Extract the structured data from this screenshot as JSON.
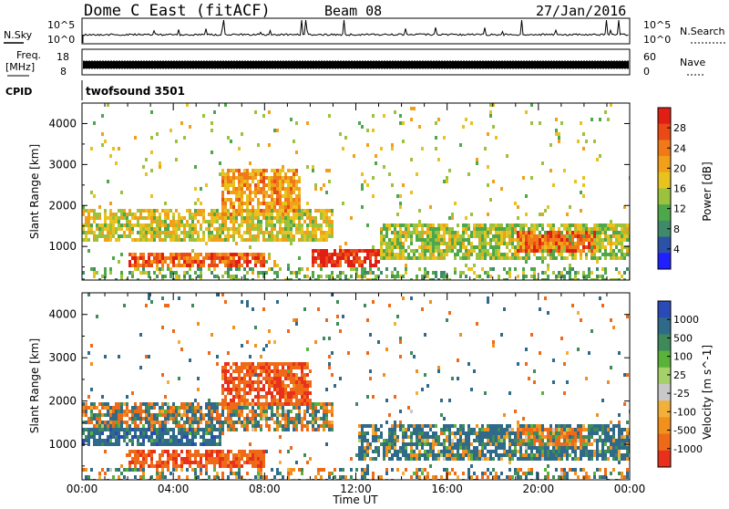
{
  "header": {
    "station": "Dome C East (fitACF)",
    "beam": "Beam 08",
    "date": "27/Jan/2016"
  },
  "status_panels": {
    "nsky_label": "N.Sky",
    "nsky_scale_top": "10^5",
    "nsky_scale_bottom": "10^0",
    "nsearch_label": "N.Search",
    "nsearch_scale_top": "10^5",
    "nsearch_scale_bottom": "10^0",
    "freq_label_line1": "Freq.",
    "freq_label_line2": "[MHz]",
    "freq_top": "18",
    "freq_bottom": "8",
    "nave_label": "Nave",
    "nave_top": "60",
    "nave_bottom": "0",
    "cpid_label": "CPID",
    "cpid_value": "twofsound 3501"
  },
  "axes": {
    "ylabel": "Slant Range [km]",
    "xlabel": "Time UT",
    "x_ticks": [
      "00:00",
      "04:00",
      "08:00",
      "12:00",
      "16:00",
      "20:00",
      "00:00"
    ],
    "y_ticks": [
      "1000",
      "2000",
      "3000",
      "4000"
    ]
  },
  "power_colorbar": {
    "label": "Power [dB]",
    "ticks": [
      "4",
      "8",
      "12",
      "16",
      "20",
      "24",
      "28"
    ],
    "colors": [
      "#1f1fff",
      "#2b52a8",
      "#3f8a6a",
      "#4ca84a",
      "#9bc23c",
      "#e8c21e",
      "#f2a01a",
      "#f07a18",
      "#ea4a16",
      "#e01e14"
    ]
  },
  "velocity_colorbar": {
    "label": "Velocity [m s^-1]",
    "ticks": [
      "1000",
      "500",
      "100",
      "25",
      "-25",
      "-100",
      "-500",
      "-1000"
    ],
    "colors": [
      "#2a4ab8",
      "#2f6a8a",
      "#3e8a5a",
      "#5ab23a",
      "#a6d06a",
      "#c8c8c8",
      "#f2b03a",
      "#f2901e",
      "#ee6a18",
      "#e8301a"
    ]
  },
  "chart_data": [
    {
      "type": "heatmap",
      "title": "Power",
      "xlabel": "Time UT",
      "ylabel": "Slant Range [km]",
      "xlim": [
        "00:00",
        "24:00"
      ],
      "ylim": [
        180,
        4500
      ],
      "zlabel": "Power [dB]",
      "zlim": [
        0,
        30
      ],
      "features": [
        {
          "time_range": [
            "00:00",
            "11:00"
          ],
          "range_km": [
            1200,
            2000
          ],
          "power_db": 16
        },
        {
          "time_range": [
            "06:00",
            "09:30"
          ],
          "range_km": [
            1800,
            2900
          ],
          "power_db": 20
        },
        {
          "time_range": [
            "02:00",
            "08:00"
          ],
          "range_km": [
            500,
            900
          ],
          "power_db": 24
        },
        {
          "time_range": [
            "10:00",
            "13:00"
          ],
          "range_km": [
            500,
            1000
          ],
          "power_db": 28
        },
        {
          "time_range": [
            "13:00",
            "24:00"
          ],
          "range_km": [
            700,
            1600
          ],
          "power_db": 14
        },
        {
          "time_range": [
            "19:00",
            "22:30"
          ],
          "range_km": [
            900,
            1400
          ],
          "power_db": 24
        }
      ]
    },
    {
      "type": "heatmap",
      "title": "Velocity",
      "xlabel": "Time UT",
      "ylabel": "Slant Range [km]",
      "xlim": [
        "00:00",
        "24:00"
      ],
      "ylim": [
        180,
        4500
      ],
      "zlabel": "Velocity [m s^-1]",
      "zlim": [
        -1000,
        1000
      ],
      "features": [
        {
          "time_range": [
            "00:00",
            "11:00"
          ],
          "range_km": [
            1300,
            2000
          ],
          "velocity_ms": 0
        },
        {
          "time_range": [
            "00:00",
            "06:00"
          ],
          "range_km": [
            1000,
            1400
          ],
          "velocity_ms": 150
        },
        {
          "time_range": [
            "02:00",
            "08:00"
          ],
          "range_km": [
            500,
            900
          ],
          "velocity_ms": -200
        },
        {
          "time_range": [
            "06:00",
            "10:00"
          ],
          "range_km": [
            1900,
            2900
          ],
          "velocity_ms": -200
        },
        {
          "time_range": [
            "12:00",
            "24:00"
          ],
          "range_km": [
            700,
            1500
          ],
          "velocity_ms": 100
        },
        {
          "time_range": [
            "19:00",
            "22:00"
          ],
          "range_km": [
            1000,
            1400
          ],
          "velocity_ms": -100
        }
      ]
    }
  ]
}
